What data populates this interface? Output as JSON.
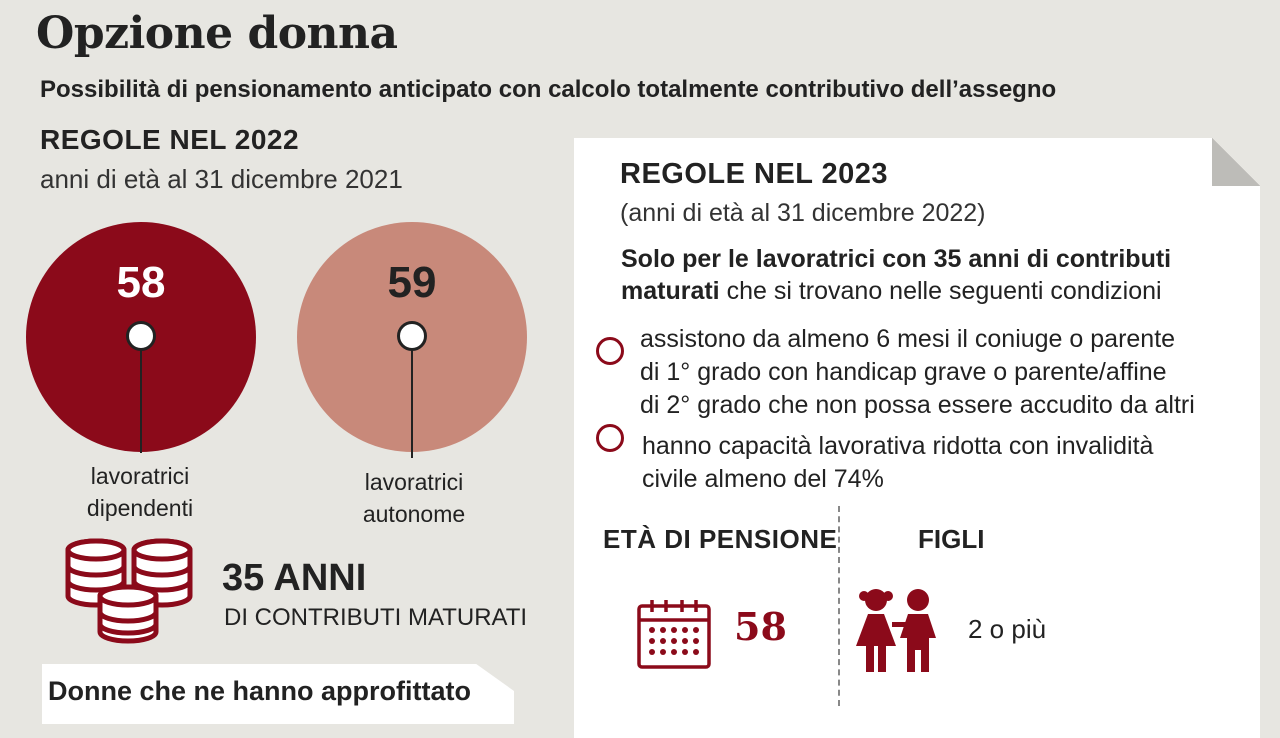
{
  "title": "Opzione donna",
  "subtitle": "Possibilità di pensionamento anticipato con calcolo totalmente contributivo dell’assegno",
  "rules_2022": {
    "heading": "REGOLE NEL 2022",
    "subheading": "anni di età al 31 dicembre 2021",
    "dipendenti": {
      "age": "58",
      "label_line1": "lavoratrici",
      "label_line2": "dipendenti"
    },
    "autonome": {
      "age": "59",
      "label_line1": "lavoratrici",
      "label_line2": "autonome"
    },
    "contributi_big": "35 ANNI",
    "contributi_small": "DI CONTRIBUTI MATURATI"
  },
  "rules_2023": {
    "heading": "REGOLE NEL 2023",
    "subheading": "(anni di età al 31 dicembre 2022)",
    "intro_bold": "Solo per le lavoratrici con 35 anni di contributi maturati",
    "intro_rest": " che si trovano nelle seguenti condizioni",
    "condition1_l1": "assistono da almeno 6 mesi il coniuge o parente",
    "condition1_l2": "di 1° grado con handicap grave o parente/affine",
    "condition1_l3": "di 2° grado che non possa essere accudito da altri",
    "condition2_l1": "hanno capacità lavorativa ridotta con invalidità",
    "condition2_l2": "civile almeno del 74%",
    "eta_header": "ETÀ DI PENSIONE",
    "eta_value": "58",
    "figli_header": "FIGLI",
    "figli_value": "2 o più"
  },
  "bottom_label": "Donne che ne hanno approfittato",
  "colors": {
    "dark_red": "#8b0a1a",
    "salmon": "#c8897a",
    "background": "#e7e6e1"
  },
  "icons": [
    "coin-stack-icon",
    "calendar-icon",
    "children-icon"
  ]
}
